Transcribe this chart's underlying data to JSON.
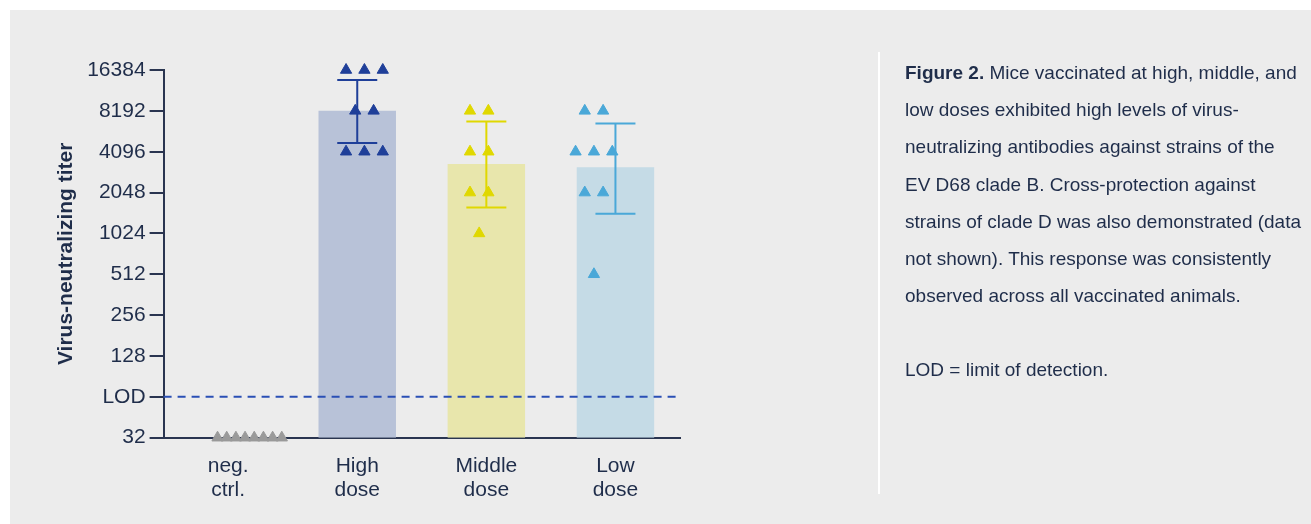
{
  "chart_data": {
    "type": "bar",
    "title": "Figure 2.",
    "ylabel": "Virus-neutralizing titer",
    "annotations": [
      "Mice vaccinated at high, middle, and low doses exhibited high levels of virus-neutralizing antibodies against strains of the EV D68 clade B. Cross-protection against strains of clade D was also demonstrated (data not shown). This response was consistently observed across all vaccinated animals.",
      "LOD = limit of detection."
    ],
    "categories": [
      "neg. ctrl.",
      "High dose",
      "Middle dose",
      "Low dose"
    ],
    "log": true,
    "ylim": [
      32,
      16384
    ],
    "yticks": [
      32,
      {
        "value": 64,
        "label": "LOD"
      },
      128,
      256,
      512,
      1024,
      2048,
      4096,
      8192,
      16384
    ],
    "grid": false,
    "legend": false,
    "marker": "triangle",
    "ref_lines": [
      {
        "axis": "y",
        "value": 64,
        "color": "#2a4fb5",
        "line_style": "dashed"
      }
    ],
    "series": [
      {
        "type": "bar",
        "values": [
          null,
          8192,
          3330,
          3150
        ],
        "colors": [
          "#b8c2d8",
          "#b8c2d8",
          "#e8e6ac",
          "#c5dbe6"
        ],
        "errors": [
          null,
          [
            4740,
            13800
          ],
          [
            1590,
            6840
          ],
          [
            1430,
            6600
          ]
        ]
      },
      {
        "type": "scatter",
        "color": "#9a9a9a",
        "x": [
          "neg. ctrl.",
          "neg. ctrl.",
          "neg. ctrl.",
          "neg. ctrl.",
          "neg. ctrl.",
          "neg. ctrl.",
          "neg. ctrl.",
          "neg. ctrl."
        ],
        "values": [
          32,
          32,
          32,
          32,
          32,
          32,
          32,
          32
        ]
      },
      {
        "type": "scatter",
        "color": "#1f3f99",
        "x": [
          "High dose",
          "High dose",
          "High dose",
          "High dose",
          "High dose",
          "High dose",
          "High dose",
          "High dose"
        ],
        "values": [
          16384,
          16384,
          16384,
          8192,
          8192,
          4096,
          4096,
          4096
        ]
      },
      {
        "type": "scatter",
        "color": "#e0d800",
        "x": [
          "Middle dose",
          "Middle dose",
          "Middle dose",
          "Middle dose",
          "Middle dose",
          "Middle dose",
          "Middle dose"
        ],
        "values": [
          8192,
          8192,
          4096,
          4096,
          2048,
          2048,
          1024
        ]
      },
      {
        "type": "scatter",
        "color": "#4aa8d8",
        "x": [
          "Low dose",
          "Low dose",
          "Low dose",
          "Low dose",
          "Low dose",
          "Low dose",
          "Low dose",
          "Low dose"
        ],
        "values": [
          8192,
          8192,
          4096,
          4096,
          4096,
          2048,
          2048,
          512
        ]
      }
    ]
  }
}
